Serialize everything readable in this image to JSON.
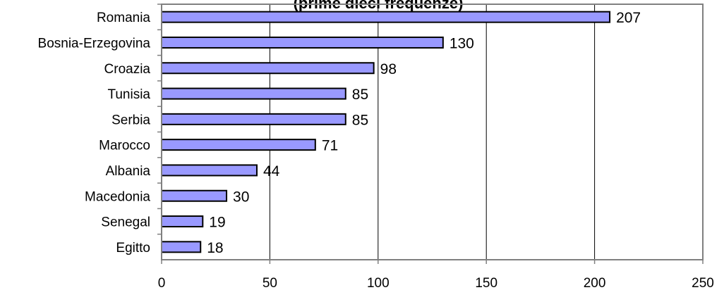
{
  "chart_data": {
    "type": "bar",
    "orientation": "horizontal",
    "title": "",
    "subtitle": "(prime dieci frequenze)",
    "xlabel": "",
    "ylabel": "",
    "categories": [
      "Romania",
      "Bosnia-Erzegovina",
      "Croazia",
      "Tunisia",
      "Serbia",
      "Marocco",
      "Albania",
      "Macedonia",
      "Senegal",
      "Egitto"
    ],
    "values": [
      207,
      130,
      98,
      85,
      85,
      71,
      44,
      30,
      19,
      18
    ],
    "xlim": [
      0,
      250
    ],
    "xticks": [
      0,
      50,
      100,
      150,
      200,
      250
    ],
    "grid": true,
    "legend": "none",
    "colors": {
      "bar_fill": "#9999ff",
      "bar_stroke": "#000000",
      "gridline": "#000000",
      "axis": "#808080"
    }
  }
}
